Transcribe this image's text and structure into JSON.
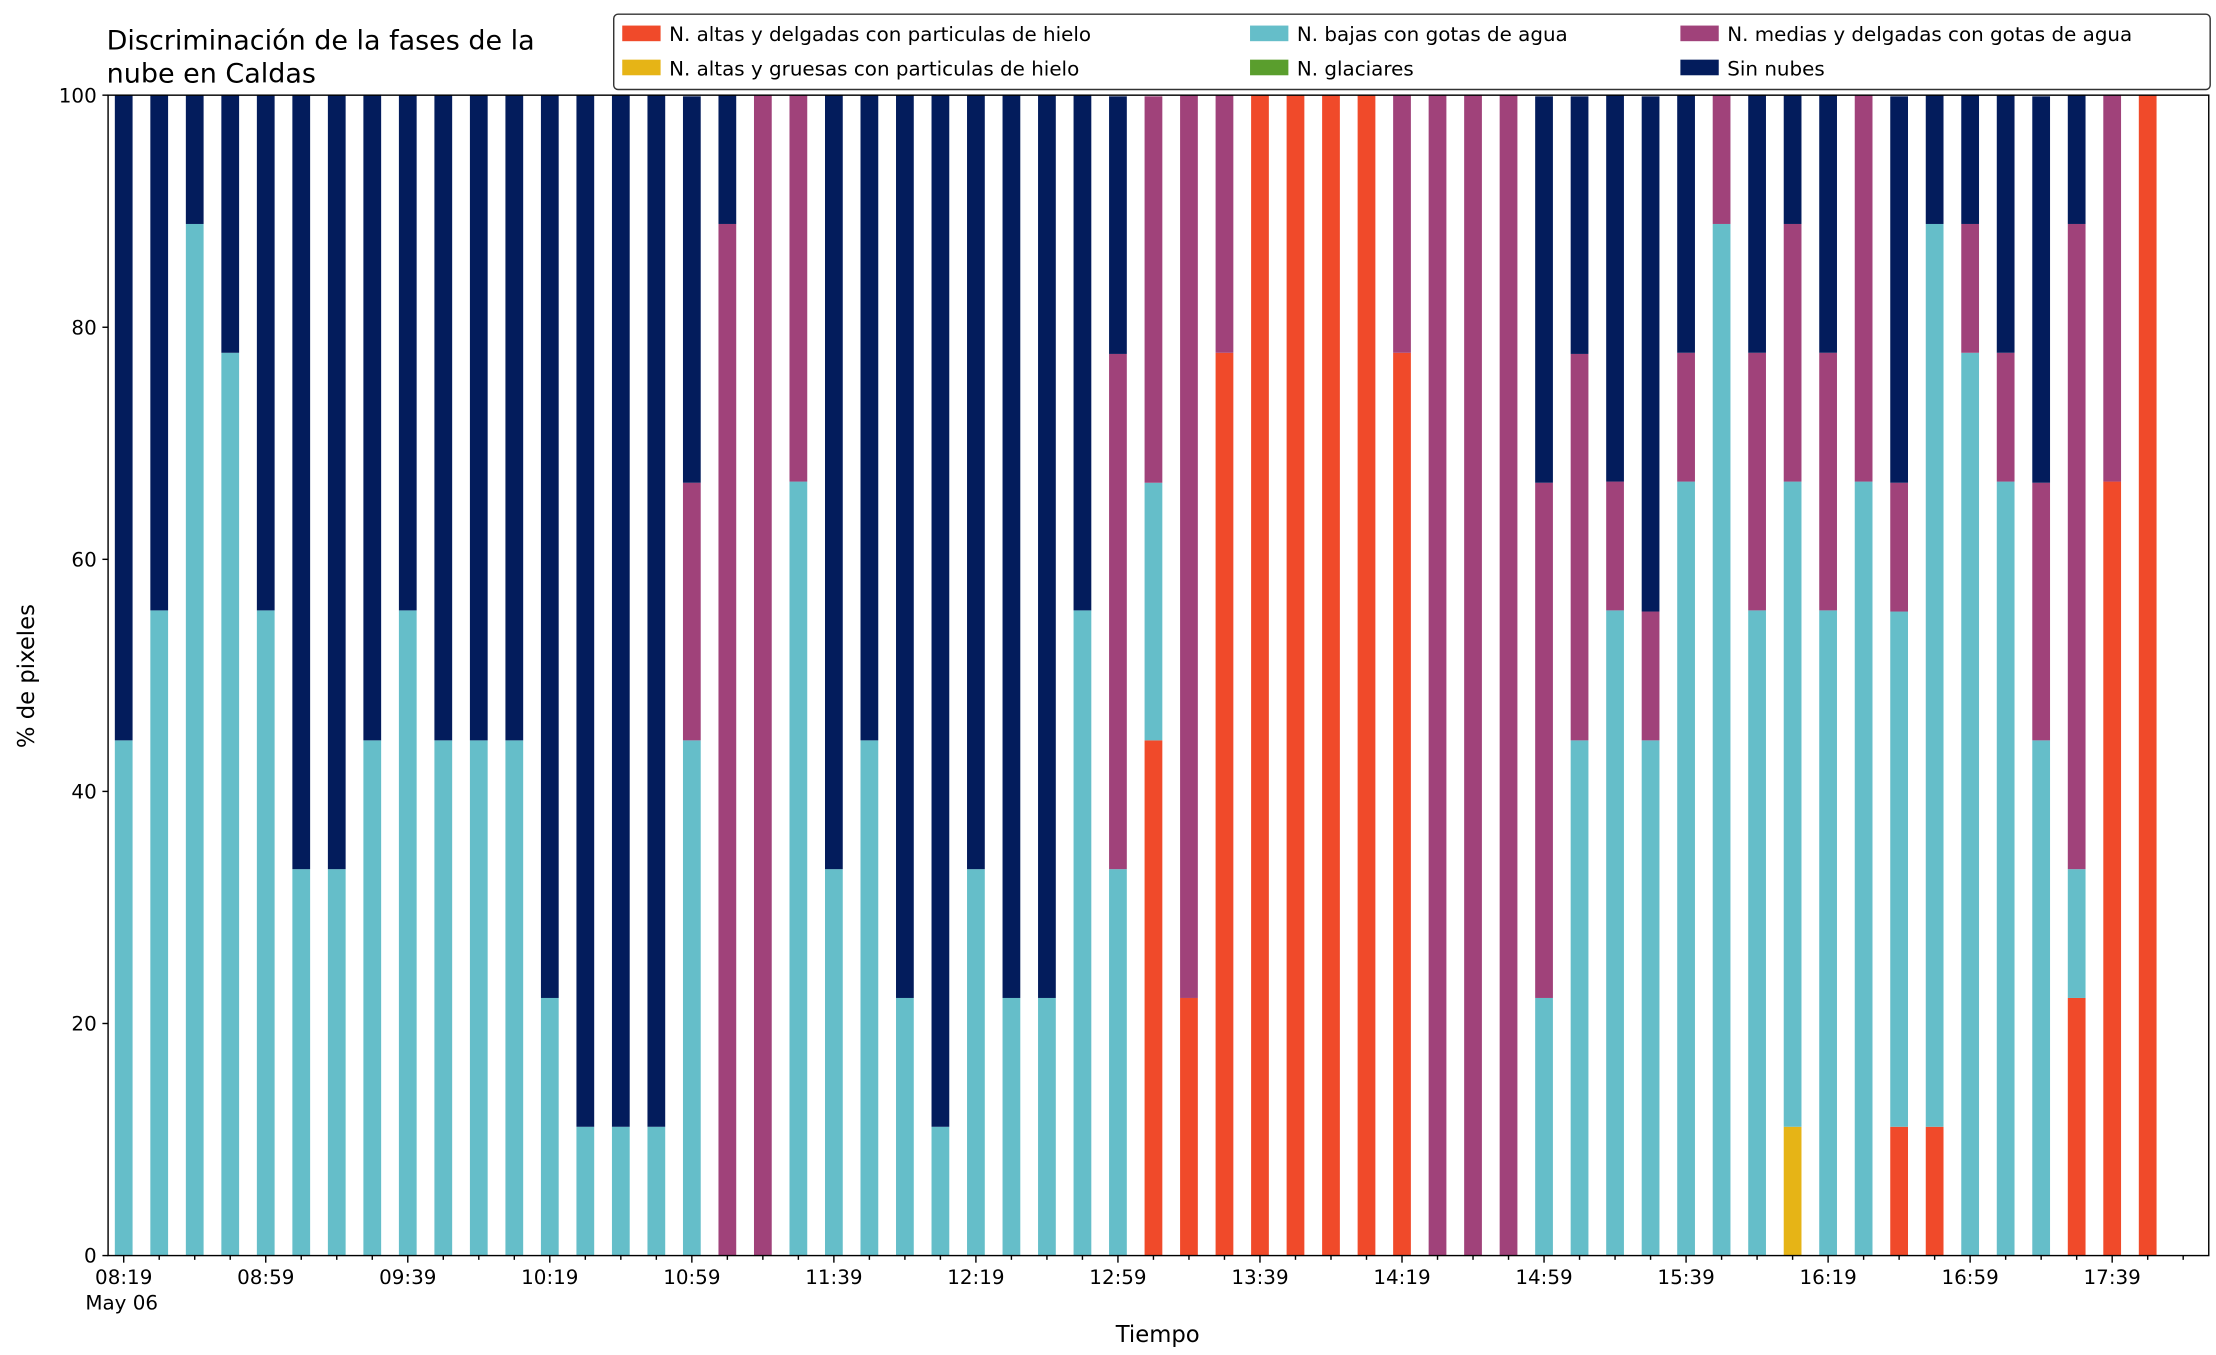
{
  "chart_data": {
    "type": "stacked_bar",
    "title": [
      "Discriminación de la fases de la",
      "nube en Caldas"
    ],
    "xlabel": "Tiempo",
    "ylabel": "% de pixeles",
    "date_label": "May 06",
    "categories": [
      "08:19",
      null,
      null,
      null,
      "08:59",
      null,
      null,
      null,
      "09:39",
      null,
      null,
      null,
      "10:19",
      null,
      null,
      null,
      "10:59",
      null,
      null,
      null,
      "11:39",
      null,
      null,
      null,
      "12:19",
      null,
      null,
      null,
      "12:59",
      null,
      null,
      null,
      "13:39",
      null,
      null,
      null,
      "14:19",
      null,
      null,
      null,
      "14:59",
      null,
      null,
      null,
      "15:39",
      null,
      null,
      null,
      "16:19",
      null,
      null,
      null,
      "16:59",
      null,
      null,
      null,
      "17:39",
      null
    ],
    "series": [
      {
        "name": "N. altas y delgadas con particulas de hielo",
        "color": "#f04a2a",
        "values": [
          0,
          0,
          0,
          0,
          0,
          0,
          0,
          0,
          0,
          0,
          0,
          0,
          0,
          0,
          0,
          0,
          0,
          0,
          0,
          0,
          0,
          0,
          0,
          0,
          0,
          0,
          0,
          0,
          0,
          44.4,
          22.2,
          77.8,
          100,
          100,
          100,
          100,
          77.8,
          0,
          0,
          0,
          0,
          0,
          0,
          0,
          0,
          0,
          0,
          0,
          0,
          0,
          11.1,
          11.1,
          0,
          0,
          0,
          22.2,
          66.7,
          100
        ]
      },
      {
        "name": "N. altas y gruesas con particulas de hielo",
        "color": "#e6b416",
        "values": [
          0,
          0,
          0,
          0,
          0,
          0,
          0,
          0,
          0,
          0,
          0,
          0,
          0,
          0,
          0,
          0,
          0,
          0,
          0,
          0,
          0,
          0,
          0,
          0,
          0,
          0,
          0,
          0,
          0,
          0,
          0,
          0,
          0,
          0,
          0,
          0,
          0,
          0,
          0,
          0,
          0,
          0,
          0,
          0,
          0,
          0,
          0,
          11.1,
          0,
          0,
          0,
          0,
          0,
          0,
          0,
          0,
          0,
          0
        ]
      },
      {
        "name": "N. bajas con gotas de agua",
        "color": "#65bec9",
        "values": [
          44.4,
          55.6,
          88.9,
          77.8,
          55.6,
          33.3,
          33.3,
          44.4,
          55.6,
          44.4,
          44.4,
          44.4,
          22.2,
          11.1,
          11.1,
          11.1,
          44.4,
          0,
          0,
          66.7,
          33.3,
          44.4,
          22.2,
          11.1,
          33.3,
          22.2,
          22.2,
          55.6,
          33.3,
          22.2,
          0,
          0,
          0,
          0,
          0,
          0,
          0,
          0,
          0,
          0,
          22.2,
          44.4,
          55.6,
          44.4,
          66.7,
          88.9,
          55.6,
          55.6,
          55.6,
          66.7,
          44.4,
          77.8,
          77.8,
          66.7,
          44.4,
          11.1,
          0,
          0
        ]
      },
      {
        "name": "N. glaciares",
        "color": "#5a9e2d",
        "values": [
          0,
          0,
          0,
          0,
          0,
          0,
          0,
          0,
          0,
          0,
          0,
          0,
          0,
          0,
          0,
          0,
          0,
          0,
          0,
          0,
          0,
          0,
          0,
          0,
          0,
          0,
          0,
          0,
          0,
          0,
          0,
          0,
          0,
          0,
          0,
          0,
          0,
          0,
          0,
          0,
          0,
          0,
          0,
          0,
          0,
          0,
          0,
          0,
          0,
          0,
          0,
          0,
          0,
          0,
          0,
          0,
          0,
          0
        ]
      },
      {
        "name": "N. medias y delgadas con gotas de agua",
        "color": "#a0427a",
        "values": [
          0,
          0,
          0,
          0,
          0,
          0,
          0,
          0,
          0,
          0,
          0,
          0,
          0,
          0,
          0,
          0,
          22.2,
          88.9,
          100,
          33.3,
          0,
          0,
          0,
          0,
          0,
          0,
          0,
          0,
          44.4,
          33.3,
          77.8,
          22.2,
          0,
          0,
          0,
          0,
          22.2,
          100,
          100,
          100,
          44.4,
          33.3,
          11.1,
          11.1,
          11.1,
          11.1,
          22.2,
          22.2,
          22.2,
          33.3,
          11.1,
          0,
          11.1,
          11.1,
          22.2,
          55.6,
          33.3,
          0
        ]
      },
      {
        "name": "Sin nubes",
        "color": "#031c5c",
        "values": [
          55.6,
          44.4,
          11.1,
          22.2,
          44.4,
          66.7,
          66.7,
          55.6,
          44.4,
          55.6,
          55.6,
          55.6,
          77.8,
          88.9,
          88.9,
          88.9,
          33.3,
          11.1,
          0,
          0,
          66.7,
          55.6,
          77.8,
          88.9,
          66.7,
          77.8,
          77.8,
          44.4,
          22.2,
          0,
          0,
          0,
          0,
          0,
          0,
          0,
          0,
          0,
          0,
          0,
          33.3,
          22.2,
          33.3,
          44.4,
          22.2,
          0,
          22.2,
          11.1,
          22.2,
          0,
          33.3,
          11.1,
          11.1,
          22.2,
          33.3,
          11.1,
          0,
          0
        ]
      }
    ],
    "ylim": [
      0,
      100
    ],
    "yticks": [
      0,
      20,
      40,
      60,
      80,
      100
    ]
  }
}
